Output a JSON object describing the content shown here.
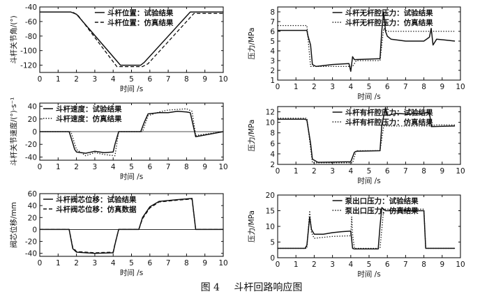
{
  "caption": {
    "figure_no": "图 4",
    "title": "斗杆回路响应图"
  },
  "chart_data": [
    {
      "type": "line",
      "xlabel": "时间 /s",
      "ylabel": "斗杆关节角/(°)",
      "xlim": [
        0,
        10
      ],
      "ylim": [
        -130,
        -40
      ],
      "xticks": [
        0,
        1,
        2,
        3,
        4,
        5,
        6,
        7,
        8,
        9,
        10
      ],
      "yticks": [
        -120,
        -100,
        -80,
        -60,
        -40
      ],
      "legend_position": "top-center",
      "series": [
        {
          "name": "斗杆位置：试验结果",
          "style": "solid",
          "x": [
            0,
            1.7,
            2.0,
            4.4,
            5.5,
            5.7,
            8.2,
            10
          ],
          "y": [
            -47,
            -47,
            -50,
            -120,
            -120,
            -116,
            -47,
            -47
          ]
        },
        {
          "name": "斗杆位置：仿真结果",
          "style": "dashed",
          "x": [
            0,
            1.8,
            2.1,
            4.2,
            5.6,
            5.9,
            8.4,
            10
          ],
          "y": [
            -47,
            -47,
            -52,
            -122,
            -122,
            -118,
            -49,
            -49
          ]
        }
      ]
    },
    {
      "type": "line",
      "xlabel": "时间 /s",
      "ylabel": "压力/MPa",
      "xlim": [
        0,
        10
      ],
      "ylim": [
        1,
        8.5
      ],
      "xticks": [
        0,
        1,
        2,
        3,
        4,
        5,
        6,
        7,
        8,
        9,
        10
      ],
      "yticks": [
        1,
        2,
        3,
        4,
        5,
        6,
        7,
        8
      ],
      "legend_position": "top-center",
      "series": [
        {
          "name": "斗杆无杆腔压力：试验结果",
          "style": "solid",
          "x": [
            0,
            1.6,
            1.65,
            1.8,
            1.9,
            2.1,
            3.0,
            3.9,
            4.0,
            4.1,
            4.2,
            5.6,
            5.7,
            5.8,
            5.9,
            6.0,
            6.2,
            7.0,
            8.0,
            8.3,
            8.4,
            8.5,
            8.7,
            9.7
          ],
          "y": [
            6.1,
            6.1,
            5.6,
            4.6,
            2.6,
            2.4,
            2.6,
            2.7,
            1.9,
            3.4,
            3.1,
            3.2,
            6.1,
            8.0,
            6.0,
            5.5,
            5.2,
            5.0,
            5.0,
            5.4,
            6.3,
            4.6,
            5.2,
            5.0
          ]
        },
        {
          "name": "斗杆无杆腔压力：仿真结果",
          "style": "dotted",
          "x": [
            0,
            1.6,
            1.8,
            4.1,
            4.3,
            5.6,
            5.8,
            6.0,
            9.7
          ],
          "y": [
            6.6,
            6.6,
            2.4,
            2.4,
            3.0,
            3.0,
            6.3,
            6.0,
            6.0
          ]
        }
      ]
    },
    {
      "type": "line",
      "xlabel": "时间 /s",
      "ylabel": "斗杆关节速度/(°)·s⁻¹",
      "xlim": [
        0,
        10
      ],
      "ylim": [
        -45,
        45
      ],
      "xticks": [
        0,
        1,
        2,
        3,
        4,
        5,
        6,
        7,
        8,
        9,
        10
      ],
      "yticks": [
        -40,
        -20,
        0,
        20,
        40
      ],
      "legend_position": "top-left",
      "series": [
        {
          "name": "斗杆速度：试验结果",
          "style": "solid",
          "x": [
            0,
            1.6,
            1.8,
            1.9,
            2.0,
            2.5,
            3.0,
            3.5,
            4.0,
            4.1,
            4.3,
            5.5,
            5.7,
            5.9,
            6.5,
            7.0,
            7.5,
            8.0,
            8.2,
            8.4,
            8.5,
            10
          ],
          "y": [
            0,
            0,
            -18,
            -28,
            -32,
            -34,
            -31,
            -33,
            -32,
            -20,
            0,
            0,
            15,
            28,
            30,
            30,
            32,
            31,
            30,
            5,
            -8,
            0
          ]
        },
        {
          "name": "斗杆速度：仿真结果",
          "style": "dotted",
          "x": [
            0,
            1.7,
            2.0,
            2.5,
            3.0,
            3.5,
            4.1,
            4.3,
            5.6,
            5.9,
            6.5,
            7.0,
            7.5,
            8.0,
            8.3,
            8.5,
            10
          ],
          "y": [
            0,
            0,
            -28,
            -38,
            -33,
            -36,
            -38,
            0,
            0,
            25,
            31,
            34,
            35,
            36,
            32,
            -6,
            0
          ]
        }
      ]
    },
    {
      "type": "line",
      "xlabel": "时间 /s",
      "ylabel": "压力/MPa",
      "xlim": [
        0,
        10
      ],
      "ylim": [
        2,
        13
      ],
      "xticks": [
        0,
        1,
        2,
        3,
        4,
        5,
        6,
        7,
        8,
        9,
        10
      ],
      "yticks": [
        2,
        4,
        6,
        8,
        10,
        12
      ],
      "legend_position": "top-center",
      "series": [
        {
          "name": "斗杆有杆腔压力：试验结果",
          "style": "solid",
          "x": [
            0,
            1.5,
            1.6,
            1.8,
            1.9,
            2.2,
            4.0,
            4.2,
            4.3,
            5.6,
            5.7,
            5.9,
            6.0,
            6.5,
            7.0,
            8.0,
            8.3,
            8.4,
            9.7
          ],
          "y": [
            10.6,
            10.6,
            10.4,
            6.0,
            3.0,
            2.4,
            2.5,
            4.3,
            4.5,
            4.6,
            9.5,
            12.8,
            11.3,
            11.7,
            11.6,
            11.7,
            12.0,
            9.2,
            9.3
          ]
        },
        {
          "name": "斗杆有杆腔压力：仿真结果",
          "style": "dotted",
          "x": [
            0,
            1.6,
            1.9,
            4.1,
            4.3,
            5.6,
            5.8,
            8.4,
            8.6,
            9.7
          ],
          "y": [
            10.8,
            10.8,
            2.3,
            2.3,
            4.6,
            4.6,
            9.3,
            9.3,
            9.5,
            9.5
          ]
        }
      ]
    },
    {
      "type": "line",
      "xlabel": "时间 /s",
      "ylabel": "阀芯位移/mm",
      "xlim": [
        0,
        10
      ],
      "ylim": [
        -45,
        60
      ],
      "xticks": [
        0,
        1,
        2,
        3,
        4,
        5,
        6,
        7,
        8,
        9,
        10
      ],
      "yticks": [
        -40,
        -20,
        0,
        20,
        40,
        60
      ],
      "legend_position": "top-left",
      "series": [
        {
          "name": "斗杆阀芯位移：试验结果",
          "style": "solid",
          "x": [
            0,
            1.6,
            1.8,
            2.0,
            3.0,
            4.0,
            4.1,
            4.3,
            5.4,
            5.6,
            6.0,
            6.5,
            7.5,
            8.3,
            8.5,
            8.7,
            10
          ],
          "y": [
            0,
            0,
            -32,
            -38,
            -40,
            -39,
            -25,
            0,
            0,
            20,
            38,
            47,
            50,
            52,
            0,
            0,
            0
          ]
        },
        {
          "name": "斗杆阀芯位移：仿真数据",
          "style": "dashed",
          "x": [
            0,
            1.6,
            1.8,
            2.0,
            3.0,
            4.0,
            4.1,
            4.3,
            5.4,
            5.6,
            6.0,
            6.5,
            7.5,
            8.3,
            8.5,
            8.7,
            10
          ],
          "y": [
            0,
            0,
            -30,
            -37,
            -39,
            -38,
            -24,
            0,
            0,
            18,
            36,
            46,
            49,
            51,
            0,
            0,
            0
          ]
        }
      ]
    },
    {
      "type": "line",
      "xlabel": "时间 /s",
      "ylabel": "压力/MPa",
      "xlim": [
        0,
        10
      ],
      "ylim": [
        0,
        20
      ],
      "xticks": [
        0,
        1,
        2,
        3,
        4,
        5,
        6,
        7,
        8,
        9,
        10
      ],
      "yticks": [
        0,
        5,
        10,
        15,
        20
      ],
      "legend_position": "top-center",
      "series": [
        {
          "name": "泵出口压力：试验结果",
          "style": "solid",
          "x": [
            0,
            1.5,
            1.6,
            1.75,
            1.85,
            2.0,
            2.5,
            3.0,
            3.5,
            4.0,
            4.1,
            4.2,
            5.5,
            5.6,
            5.7,
            5.9,
            6.5,
            7.0,
            7.5,
            8.0,
            8.1,
            8.2,
            9.7
          ],
          "y": [
            3,
            3,
            4,
            13,
            9,
            7.5,
            7.5,
            8,
            8.3,
            8.5,
            3,
            2.8,
            2.8,
            10,
            16,
            15,
            15,
            15,
            15,
            15,
            3,
            3,
            3
          ]
        },
        {
          "name": "泵出口压力：仿真结果",
          "style": "dotted",
          "x": [
            0,
            1.6,
            1.75,
            1.85,
            2.0,
            3.0,
            4.0,
            4.05,
            4.1,
            4.2,
            5.6,
            5.8,
            8.0,
            8.1,
            9.7
          ],
          "y": [
            3,
            3,
            15,
            8,
            6.2,
            6.8,
            7.0,
            13,
            7.5,
            3,
            3,
            15.5,
            15.5,
            3,
            3
          ]
        }
      ]
    }
  ]
}
